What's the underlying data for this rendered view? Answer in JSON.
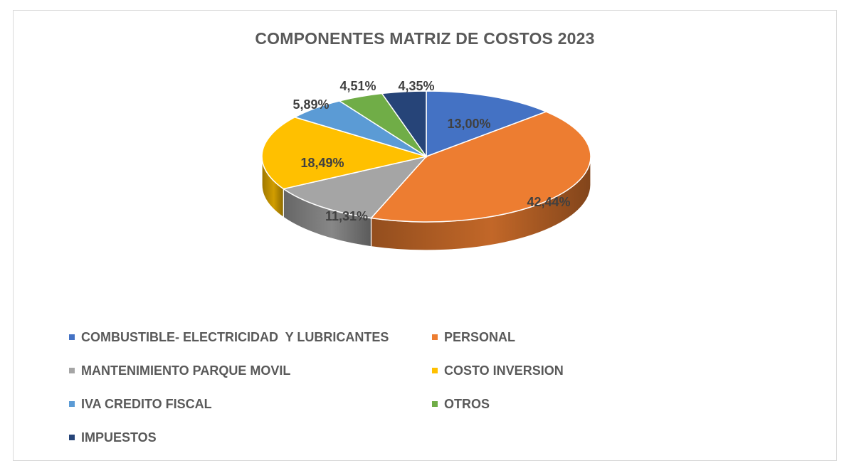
{
  "chart_data": {
    "type": "pie",
    "title": "COMPONENTES MATRIZ DE COSTOS 2023",
    "legend_position": "bottom",
    "slices": [
      {
        "name": "COMBUSTIBLE- ELECTRICIDAD  Y LUBRICANTES",
        "value": 13.0,
        "label": "13,00%",
        "color": "#4472C4"
      },
      {
        "name": "PERSONAL",
        "value": 42.44,
        "label": "42,44%",
        "color": "#ED7D31"
      },
      {
        "name": "MANTENIMIENTO PARQUE MOVIL",
        "value": 11.31,
        "label": "11,31%",
        "color": "#A5A5A5"
      },
      {
        "name": "COSTO INVERSION",
        "value": 18.49,
        "label": "18,49%",
        "color": "#FFC000"
      },
      {
        "name": "IVA CREDITO FISCAL",
        "value": 5.89,
        "label": "5,89%",
        "color": "#5B9BD5"
      },
      {
        "name": "OTROS",
        "value": 4.51,
        "label": "4,51%",
        "color": "#70AD47"
      },
      {
        "name": "IMPUESTOS",
        "value": 4.35,
        "label": "4,35%",
        "color": "#264478"
      }
    ]
  }
}
